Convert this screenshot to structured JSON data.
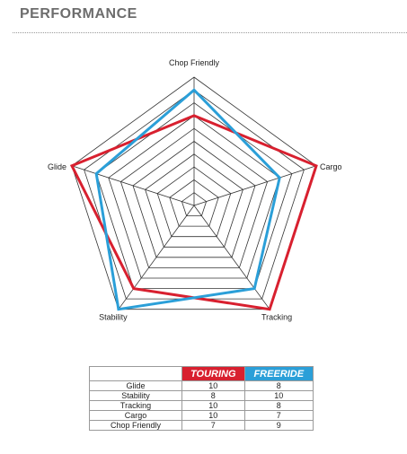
{
  "section": {
    "title": "PERFORMANCE"
  },
  "chart_data": {
    "type": "radar",
    "axes": [
      "Chop Friendly",
      "Cargo",
      "Tracking",
      "Stability",
      "Glide"
    ],
    "range": [
      0,
      10
    ],
    "rings": 10,
    "series": [
      {
        "name": "TOURING",
        "color": "#d8202f",
        "values": {
          "Chop Friendly": 7,
          "Cargo": 10,
          "Tracking": 10,
          "Stability": 8,
          "Glide": 10
        }
      },
      {
        "name": "FREERIDE",
        "color": "#2b9fd8",
        "values": {
          "Chop Friendly": 9,
          "Cargo": 7,
          "Tracking": 8,
          "Stability": 10,
          "Glide": 8
        }
      }
    ]
  },
  "table": {
    "headers": [
      "",
      "TOURING",
      "FREERIDE"
    ],
    "rows": [
      [
        "Glide",
        "10",
        "8"
      ],
      [
        "Stability",
        "8",
        "10"
      ],
      [
        "Tracking",
        "10",
        "8"
      ],
      [
        "Cargo",
        "10",
        "7"
      ],
      [
        "Chop Friendly",
        "7",
        "9"
      ]
    ]
  }
}
